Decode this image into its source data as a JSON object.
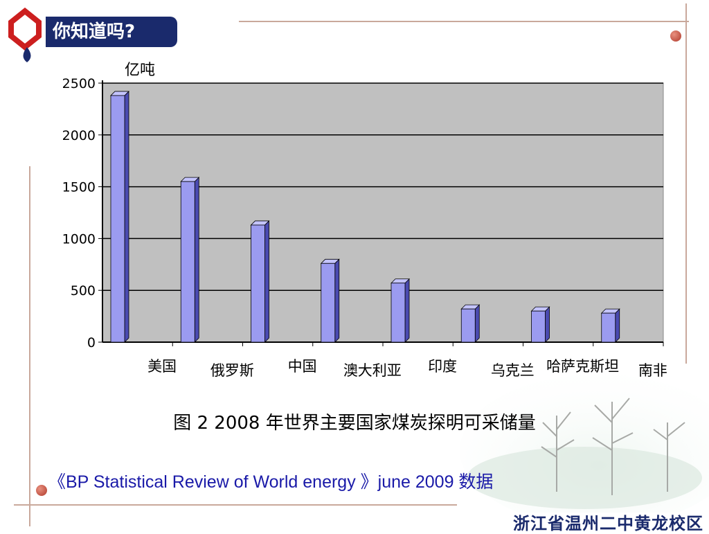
{
  "badge": {
    "title": "你知道吗?"
  },
  "chart_data": {
    "type": "bar",
    "ylabel": "亿吨",
    "ylim": [
      0,
      2500
    ],
    "yticks": [
      0,
      500,
      1000,
      1500,
      2000,
      2500
    ],
    "categories": [
      "美国",
      "俄罗斯",
      "中国",
      "澳大利亚",
      "印度",
      "乌克兰",
      "哈萨克斯坦",
      "南非"
    ],
    "values": [
      2380,
      1550,
      1130,
      760,
      570,
      320,
      300,
      280
    ],
    "grid": true,
    "colors": {
      "bar": "#9b9bf0",
      "plot_bg": "#c0c0c0",
      "axis": "#000000"
    }
  },
  "caption": "图 2  2008 年世界主要国家煤炭探明可采储量",
  "source": "《BP Statistical Review of World energy 》june 2009 数据",
  "school": "浙江省温州二中黄龙校区"
}
